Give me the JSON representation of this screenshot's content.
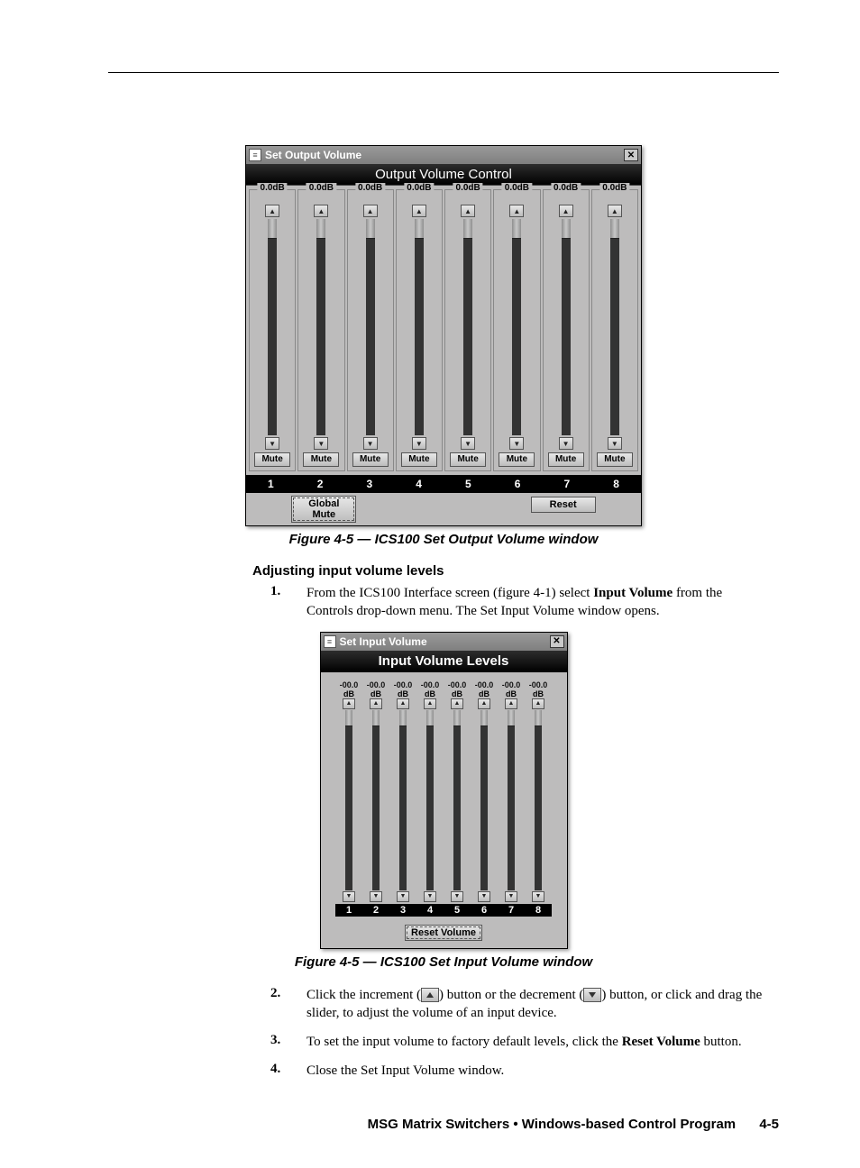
{
  "page": {
    "subheading": "Adjusting input volume levels",
    "footer_text": "MSG Matrix Switchers • Windows-based Control Program",
    "footer_page": "4-5"
  },
  "outputWin": {
    "title": "Set Output Volume",
    "banner": "Output Volume Control",
    "db_label": "0.0dB",
    "channels": [
      1,
      2,
      3,
      4,
      5,
      6,
      7,
      8
    ],
    "mute_label": "Mute",
    "global_mute": "Global Mute",
    "reset": "Reset",
    "caption": "Figure 4-5 — ICS100 Set Output Volume window",
    "colors": {
      "bg": "#bdbcbc",
      "black": "#000000",
      "track": "#333333",
      "fill": "#c8c8c8",
      "button": "#d9d9d9"
    }
  },
  "inputWin": {
    "title": "Set Input Volume",
    "banner": "Input Volume Levels",
    "db_value": "-00.0",
    "db_unit": "dB",
    "channels": [
      1,
      2,
      3,
      4,
      5,
      6,
      7,
      8
    ],
    "reset": "Reset Volume",
    "caption": "Figure 4-5 — ICS100 Set Input Volume window"
  },
  "steps": {
    "s1": {
      "n": "1.",
      "a": "From the ICS100 Interface screen (figure 4-1) select ",
      "b": "Input Volume",
      "c": " from the Controls drop-down menu.  The Set Input Volume window opens."
    },
    "s2": {
      "n": "2.",
      "a": "Click the increment (",
      "b": ") button or the decrement (",
      "c": ") button, or click and drag the slider, to adjust the volume of an input device."
    },
    "s3": {
      "n": "3.",
      "a": "To set the input volume to factory default levels, click the ",
      "b": "Reset Volume",
      "c": " button."
    },
    "s4": {
      "n": "4.",
      "a": "Close the Set Input Volume window."
    }
  }
}
